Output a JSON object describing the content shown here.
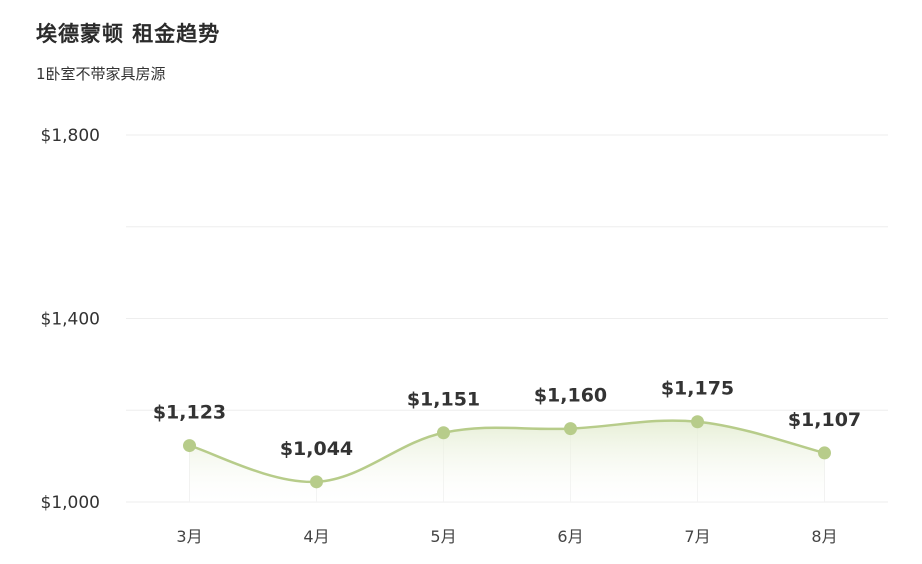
{
  "header": {
    "title": "埃德蒙顿 租金趋势",
    "subtitle": "1卧室不带家具房源"
  },
  "colors": {
    "line": "#b7cc8a",
    "point": "#b7cc8a",
    "area_top": "#e4edd2",
    "grid": "#eeeeee"
  },
  "chart_data": {
    "type": "line",
    "title": "埃德蒙顿 租金趋势",
    "subtitle": "1卧室不带家具房源",
    "categories": [
      "3月",
      "4月",
      "5月",
      "6月",
      "7月",
      "8月"
    ],
    "series": [
      {
        "values": [
          1123,
          1044,
          1151,
          1160,
          1175,
          1107
        ],
        "data_labels": [
          "$1,123",
          "$1,044",
          "$1,151",
          "$1,160",
          "$1,175",
          "$1,107"
        ]
      }
    ],
    "ylim": [
      1000,
      1800
    ],
    "yticks": [
      1000,
      1200,
      1400,
      1600,
      1800
    ],
    "ytick_labels": [
      "$1,000",
      "",
      "$1,400",
      "",
      "$1,800"
    ],
    "xlabel": "",
    "ylabel": "",
    "grid": true,
    "legend": "none"
  }
}
